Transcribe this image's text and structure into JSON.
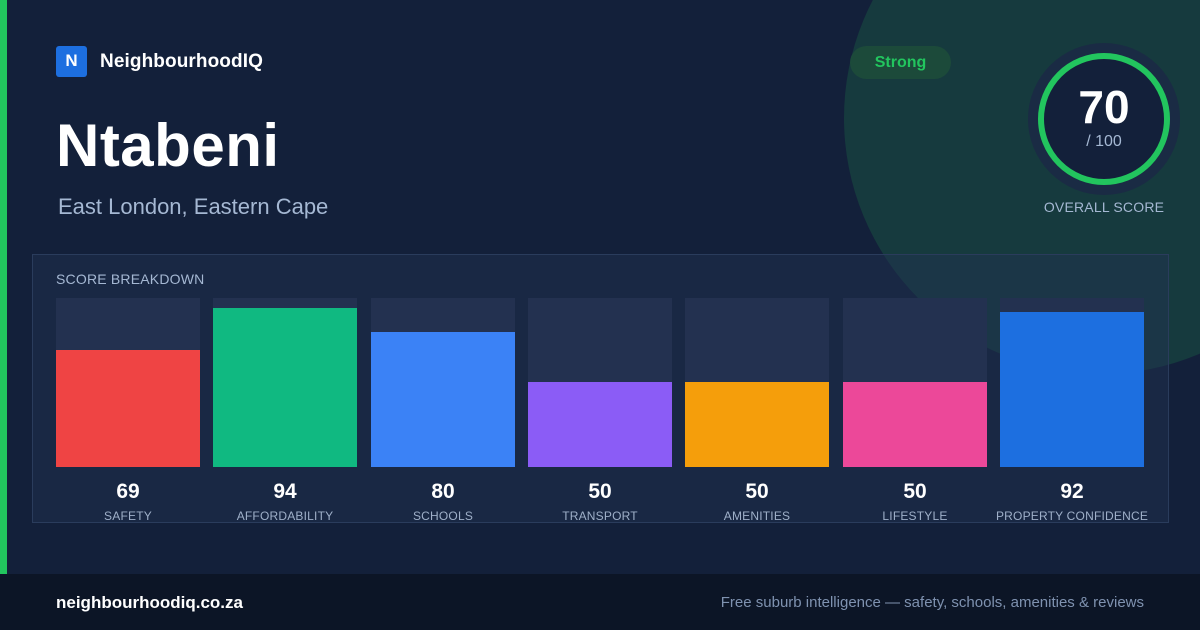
{
  "brand": {
    "logo_letter": "N",
    "name": "NeighbourhoodIQ"
  },
  "suburb": {
    "name": "Ntabeni",
    "location": "East London, Eastern Cape"
  },
  "rating": {
    "label": "Strong",
    "color": "#22c55e"
  },
  "overall_score": {
    "value": "70",
    "max": "/ 100",
    "fraction": 0.7,
    "label": "OVERALL SCORE",
    "ring_color": "#22c55e"
  },
  "breakdown": {
    "title": "SCORE BREAKDOWN",
    "items": [
      {
        "label": "SAFETY",
        "value": "69",
        "score": 69,
        "color": "#ef4444"
      },
      {
        "label": "AFFORDABILITY",
        "value": "94",
        "score": 94,
        "color": "#10b981"
      },
      {
        "label": "SCHOOLS",
        "value": "80",
        "score": 80,
        "color": "#3b82f6"
      },
      {
        "label": "TRANSPORT",
        "value": "50",
        "score": 50,
        "color": "#8b5cf6"
      },
      {
        "label": "AMENITIES",
        "value": "50",
        "score": 50,
        "color": "#f59e0b"
      },
      {
        "label": "LIFESTYLE",
        "value": "50",
        "score": 50,
        "color": "#ec4899"
      },
      {
        "label": "PROPERTY CONFIDENCE",
        "value": "92",
        "score": 92,
        "color": "#1d6fe0"
      }
    ]
  },
  "footer": {
    "domain": "neighbourhoodiq.co.za",
    "tagline": "Free suburb intelligence — safety, schools, amenities & reviews"
  }
}
